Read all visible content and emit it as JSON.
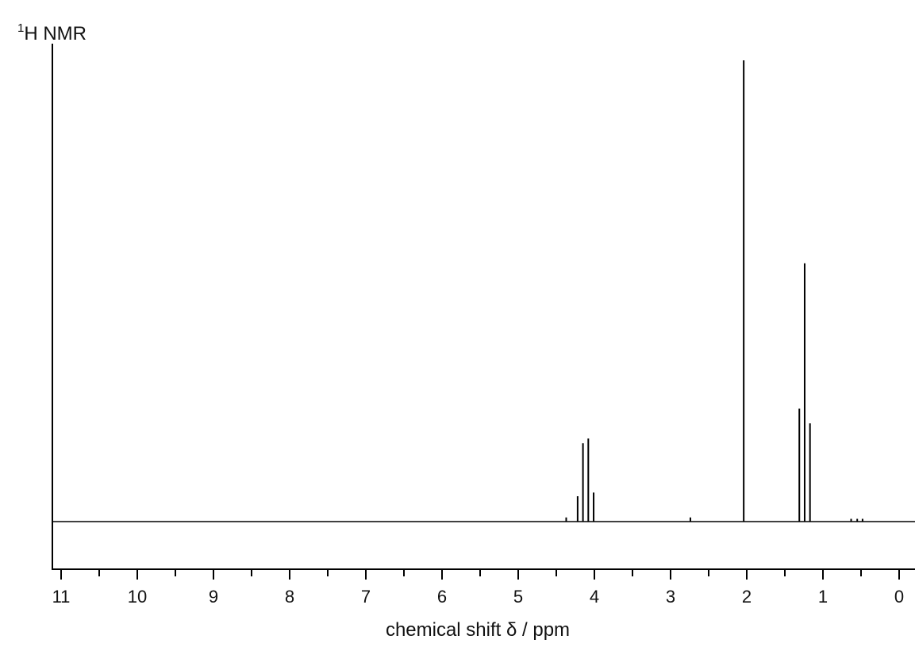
{
  "chart_data": {
    "type": "line",
    "title_main": "H NMR",
    "title_superscript": "1",
    "xlabel": "chemical shift δ / ppm",
    "ylabel": "",
    "xlim": [
      11.1,
      -0.2
    ],
    "ylim": [
      -0.1,
      1.0
    ],
    "x_direction": "reversed",
    "grid": false,
    "major_ticks": [
      11,
      10,
      9,
      8,
      7,
      6,
      5,
      4,
      3,
      2,
      1,
      0
    ],
    "tick_labels": [
      "11",
      "10",
      "9",
      "8",
      "7",
      "6",
      "5",
      "4",
      "3",
      "2",
      "1",
      "0"
    ],
    "peaks": [
      {
        "x": 4.37,
        "y": 0.009
      },
      {
        "x": 4.22,
        "y": 0.055
      },
      {
        "x": 4.15,
        "y": 0.17
      },
      {
        "x": 4.08,
        "y": 0.18
      },
      {
        "x": 4.01,
        "y": 0.063
      },
      {
        "x": 2.74,
        "y": 0.009
      },
      {
        "x": 2.04,
        "y": 1.0
      },
      {
        "x": 1.31,
        "y": 0.245
      },
      {
        "x": 1.24,
        "y": 0.56
      },
      {
        "x": 1.17,
        "y": 0.213
      },
      {
        "x": 0.63,
        "y": 0.006
      },
      {
        "x": 0.55,
        "y": 0.006
      },
      {
        "x": 0.48,
        "y": 0.006
      }
    ]
  }
}
